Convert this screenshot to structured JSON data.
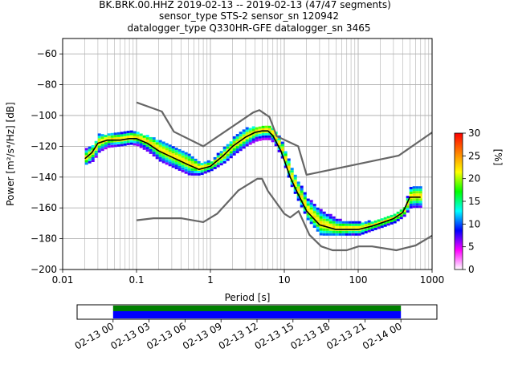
{
  "header": {
    "line1": "BK.BRK.00.HHZ   2019-02-13 -- 2019-02-13  (47/47 segments)",
    "line2": "sensor_type STS-2 sensor_sn 120942",
    "line3": "datalogger_type Q330HR-GFE datalogger_sn 3465"
  },
  "chart_data": [
    {
      "type": "heatmap",
      "xlabel": "Period [s]",
      "ylabel": "Power [m²/s⁴/Hz] [dB]",
      "xscale": "log",
      "xlim": [
        0.01,
        1000
      ],
      "ylim": [
        -200,
        -50
      ],
      "xticks": [
        0.01,
        0.1,
        1,
        10,
        100,
        1000
      ],
      "xtick_labels": [
        "0.01",
        "0.1",
        "1",
        "10",
        "100",
        "1000"
      ],
      "yticks": [
        -200,
        -180,
        -160,
        -140,
        -120,
        -100,
        -80,
        -60
      ],
      "ytick_labels": [
        "−200",
        "−180",
        "−160",
        "−140",
        "−120",
        "−100",
        "−80",
        "−60"
      ],
      "grid": true,
      "colormap": "pqlx",
      "colorbar": {
        "label": "[%]",
        "range": [
          0,
          30
        ],
        "ticks": [
          0,
          5,
          10,
          15,
          20,
          25,
          30
        ],
        "tick_labels": [
          "0",
          "5",
          "10",
          "15",
          "20",
          "25",
          "30"
        ],
        "colors": [
          "#ffffff",
          "#ff00ff",
          "#0000ff",
          "#00ffff",
          "#00ff00",
          "#ffff00",
          "#ff8000",
          "#ff0000"
        ]
      },
      "series": [
        {
          "role": "mode",
          "color": "#000000",
          "x": [
            0.02,
            0.025,
            0.03,
            0.04,
            0.06,
            0.08,
            0.1,
            0.14,
            0.2,
            0.3,
            0.5,
            0.7,
            1,
            1.5,
            2,
            3,
            4,
            5,
            6,
            7,
            9,
            12,
            15,
            20,
            30,
            50,
            80,
            100,
            150,
            200,
            300,
            400,
            500,
            700
          ],
          "y": [
            -128,
            -124,
            -118,
            -116,
            -116,
            -115,
            -115,
            -118,
            -123,
            -127,
            -132,
            -135,
            -133,
            -126,
            -120,
            -114,
            -111,
            -110,
            -110,
            -113,
            -123,
            -140,
            -150,
            -162,
            -171,
            -174,
            -174,
            -174,
            -172,
            -170,
            -167,
            -163,
            -153,
            -153
          ]
        },
        {
          "role": "new-high-noise-model",
          "color": "#666666",
          "x": [
            0.1,
            0.22,
            0.32,
            0.8,
            3.8,
            4.6,
            6.3,
            7.9,
            15.4,
            20,
            354.8,
            1000
          ],
          "y": [
            -91.5,
            -97.4,
            -110.5,
            -120,
            -98,
            -96.5,
            -101,
            -113.5,
            -120,
            -138.5,
            -126,
            -111
          ]
        },
        {
          "role": "new-low-noise-model",
          "color": "#666666",
          "x": [
            0.1,
            0.17,
            0.4,
            0.8,
            1.24,
            2.4,
            4.3,
            5,
            6,
            10,
            12,
            15.6,
            21.9,
            31.6,
            45,
            70,
            101,
            154,
            328,
            600,
            1000
          ],
          "y": [
            -168,
            -166.7,
            -166.7,
            -169.2,
            -163.7,
            -148.6,
            -141.1,
            -141.1,
            -149,
            -163.8,
            -166.2,
            -162.1,
            -177.5,
            -185,
            -187.5,
            -187.5,
            -185,
            -185,
            -187.5,
            -184.4,
            -178
          ]
        }
      ],
      "density": {
        "x": [
          0.02,
          0.025,
          0.03,
          0.04,
          0.06,
          0.08,
          0.1,
          0.14,
          0.2,
          0.3,
          0.5,
          0.7,
          1,
          1.5,
          2,
          3,
          4,
          5,
          6,
          7,
          9,
          12,
          15,
          20,
          30,
          50,
          80,
          100,
          150,
          200,
          300,
          400,
          500,
          700
        ],
        "low": [
          -132,
          -130,
          -124,
          -121,
          -120,
          -119,
          -120,
          -124,
          -130,
          -134,
          -139,
          -139,
          -136,
          -131,
          -126,
          -120,
          -117,
          -116,
          -116,
          -118,
          -128,
          -146,
          -156,
          -168,
          -178,
          -178,
          -178,
          -178,
          -175,
          -173,
          -170,
          -166,
          -160,
          -160
        ],
        "high": [
          -122,
          -120,
          -113,
          -113,
          -112,
          -111,
          -112,
          -114,
          -117,
          -121,
          -126,
          -131,
          -130,
          -121,
          -115,
          -109,
          -108,
          -107,
          -107,
          -109,
          -118,
          -134,
          -144,
          -154,
          -162,
          -168,
          -170,
          -170,
          -169,
          -167,
          -164,
          -160,
          -147,
          -147
        ]
      }
    },
    {
      "type": "timeline",
      "xlim": [
        "2019-02-12 21:00",
        "2019-02-14 03:00"
      ],
      "coverage": [
        [
          "2019-02-13 00:00",
          "2019-02-14 00:00"
        ]
      ],
      "fill_color": "#008000",
      "data_color": "#0000ff",
      "xtick_labels": [
        "02-13 00",
        "02-13 03",
        "02-13 06",
        "02-13 09",
        "02-13 12",
        "02-13 15",
        "02-13 18",
        "02-13 21",
        "02-14 00"
      ]
    }
  ]
}
